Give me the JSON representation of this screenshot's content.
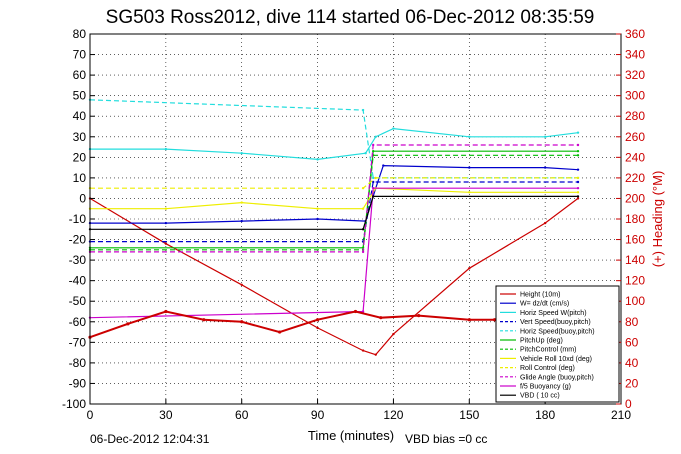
{
  "chart_data": {
    "type": "line",
    "title": "SG503 Ross2012, dive 114 started 06-Dec-2012 08:35:59",
    "xlabel": "Time (minutes)",
    "ylabel": "",
    "ylabel_right": "(+) Heading (°M)",
    "xlim": [
      0,
      210
    ],
    "ylim": [
      -100,
      80
    ],
    "ylim_right": [
      0,
      360
    ],
    "x_ticks": [
      0,
      30,
      60,
      90,
      120,
      150,
      180,
      210
    ],
    "y_ticks": [
      -100,
      -90,
      -80,
      -70,
      -60,
      -50,
      -40,
      -30,
      -20,
      -10,
      0,
      10,
      20,
      30,
      40,
      50,
      60,
      70,
      80
    ],
    "y_ticks_right": [
      0,
      20,
      40,
      60,
      80,
      100,
      120,
      140,
      160,
      180,
      200,
      220,
      240,
      260,
      280,
      300,
      320,
      340,
      360
    ],
    "grid": true,
    "legend_position": "bottom-right",
    "footer_left": "06-Dec-2012 12:04:31",
    "footer_right": "VBD bias =0 cc",
    "series": [
      {
        "name": "Height (10m)",
        "color": "#cc0000",
        "style": "solid",
        "points": [
          [
            0,
            0
          ],
          [
            30,
            -22
          ],
          [
            60,
            -42
          ],
          [
            90,
            -63
          ],
          [
            108,
            -74
          ],
          [
            113,
            -76
          ],
          [
            120,
            -66
          ],
          [
            150,
            -34
          ],
          [
            180,
            -12
          ],
          [
            193,
            0
          ]
        ]
      },
      {
        "name": "W= dz/dt (cm/s)",
        "color": "#0000cc",
        "style": "solid",
        "points": [
          [
            0,
            -12
          ],
          [
            30,
            -12
          ],
          [
            60,
            -11
          ],
          [
            90,
            -10
          ],
          [
            109,
            -11
          ],
          [
            113,
            5
          ],
          [
            116,
            16
          ],
          [
            150,
            15
          ],
          [
            180,
            15
          ],
          [
            193,
            14
          ]
        ]
      },
      {
        "name": "Horiz Speed W(pitch)",
        "color": "#22dddd",
        "style": "solid",
        "points": [
          [
            0,
            24
          ],
          [
            30,
            24
          ],
          [
            60,
            22
          ],
          [
            90,
            19
          ],
          [
            109,
            22
          ],
          [
            113,
            30
          ],
          [
            120,
            34
          ],
          [
            150,
            30
          ],
          [
            180,
            30
          ],
          [
            193,
            32
          ]
        ]
      },
      {
        "name": "Vert Speed(buoy,pitch)",
        "color": "#0000cc",
        "style": "dashed",
        "points": [
          [
            0,
            -21
          ],
          [
            108,
            -21
          ],
          [
            112,
            8
          ],
          [
            193,
            8
          ]
        ]
      },
      {
        "name": "Horiz Speed(buoy,pitch)",
        "color": "#22dddd",
        "style": "dashed",
        "points": [
          [
            0,
            48
          ],
          [
            108,
            43
          ],
          [
            112,
            10
          ],
          [
            193,
            10
          ]
        ]
      },
      {
        "name": "PitchUp (deg)",
        "color": "#00bb00",
        "style": "solid",
        "points": [
          [
            0,
            -24
          ],
          [
            108,
            -24
          ],
          [
            112,
            23
          ],
          [
            193,
            23
          ]
        ]
      },
      {
        "name": "PitchControl (mm)",
        "color": "#00bb00",
        "style": "dashed",
        "points": [
          [
            0,
            -25
          ],
          [
            108,
            -25
          ],
          [
            112,
            21
          ],
          [
            193,
            21
          ]
        ]
      },
      {
        "name": "Vehicle Roll 10xd (deg)",
        "color": "#eeee00",
        "style": "solid",
        "points": [
          [
            0,
            -5
          ],
          [
            30,
            -5
          ],
          [
            60,
            -2
          ],
          [
            90,
            -5
          ],
          [
            108,
            -5
          ],
          [
            113,
            5
          ],
          [
            150,
            3
          ],
          [
            193,
            3
          ]
        ]
      },
      {
        "name": "Roll Control (deg)",
        "color": "#eeee00",
        "style": "dashed",
        "points": [
          [
            0,
            5
          ],
          [
            108,
            5
          ],
          [
            113,
            10
          ],
          [
            193,
            10
          ]
        ]
      },
      {
        "name": "Glide Angle (buoy,pitch)",
        "color": "#cc00cc",
        "style": "dashed",
        "points": [
          [
            0,
            -26
          ],
          [
            108,
            -26
          ],
          [
            112,
            26
          ],
          [
            193,
            26
          ]
        ]
      },
      {
        "name": "f/5 Buoyancy (g)",
        "color": "#cc00cc",
        "style": "solid",
        "points": [
          [
            0,
            -58
          ],
          [
            108,
            -55
          ],
          [
            112,
            5
          ],
          [
            193,
            5
          ]
        ]
      },
      {
        "name": "VBD ( 10 cc)",
        "color": "#000000",
        "style": "solid",
        "points": [
          [
            0,
            -15
          ],
          [
            108,
            -15
          ],
          [
            112,
            1
          ],
          [
            193,
            1
          ]
        ]
      }
    ],
    "heading_series": {
      "name": "Heading",
      "color": "#cc0000",
      "axis": "right",
      "points": [
        [
          0,
          65
        ],
        [
          15,
          78
        ],
        [
          30,
          90
        ],
        [
          45,
          82
        ],
        [
          60,
          80
        ],
        [
          75,
          70
        ],
        [
          90,
          82
        ],
        [
          105,
          90
        ],
        [
          115,
          84
        ],
        [
          130,
          86
        ],
        [
          150,
          82
        ],
        [
          160,
          82
        ]
      ]
    }
  }
}
